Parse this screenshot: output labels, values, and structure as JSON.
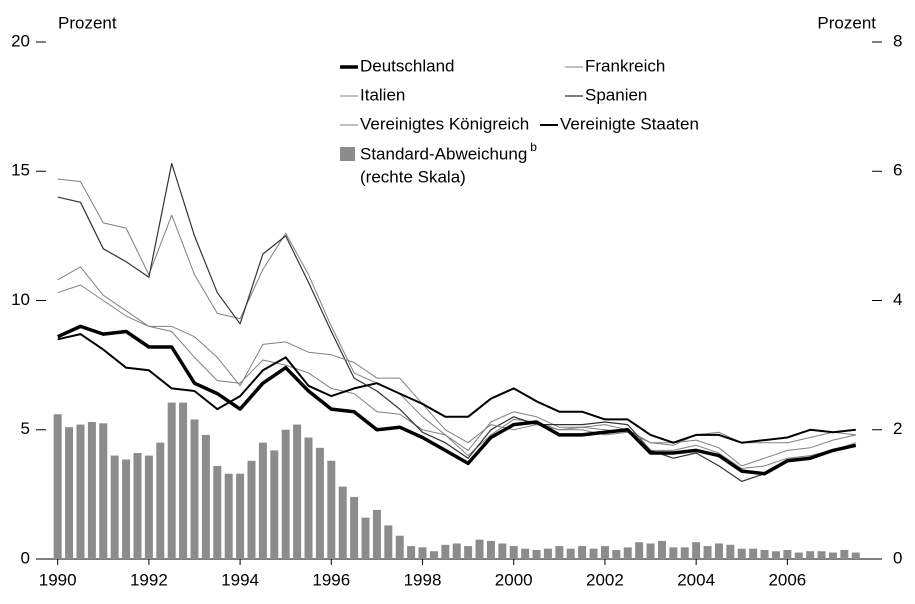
{
  "chart_data": {
    "type": "line_bar",
    "y_label": "Prozent",
    "y2_label": "Prozent",
    "xlim": [
      1989.7,
      2007.9
    ],
    "xticks": [
      1990,
      1992,
      1994,
      1996,
      1998,
      2000,
      2002,
      2004,
      2006
    ],
    "ylim": [
      0,
      20
    ],
    "yticks": [
      0,
      5,
      10,
      15,
      20
    ],
    "y2lim": [
      0,
      8
    ],
    "y2ticks": [
      0,
      2,
      4,
      6,
      8
    ],
    "x": [
      1990,
      1990.5,
      1991,
      1991.5,
      1992,
      1992.5,
      1993,
      1993.5,
      1994,
      1994.5,
      1995,
      1995.5,
      1996,
      1996.5,
      1997,
      1997.5,
      1998,
      1998.5,
      1999,
      1999.5,
      2000,
      2000.5,
      2001,
      2001.5,
      2002,
      2002.5,
      2003,
      2003.5,
      2004,
      2004.5,
      2005,
      2005.5,
      2006,
      2006.5,
      2007,
      2007.5
    ],
    "series": [
      {
        "name": "Deutschland",
        "color": "#000000",
        "linewidth": 3.5,
        "values": [
          8.6,
          9.0,
          8.7,
          8.8,
          8.2,
          8.2,
          6.8,
          6.4,
          5.8,
          6.8,
          7.4,
          6.5,
          5.8,
          5.7,
          5.0,
          5.1,
          4.7,
          4.2,
          3.7,
          4.7,
          5.2,
          5.3,
          4.8,
          4.8,
          4.9,
          5.0,
          4.1,
          4.1,
          4.2,
          4.0,
          3.4,
          3.3,
          3.8,
          3.9,
          4.2,
          4.4
        ]
      },
      {
        "name": "Frankreich",
        "color": "#808080",
        "linewidth": 1,
        "values": [
          10.3,
          10.6,
          10.0,
          9.4,
          9.0,
          8.8,
          7.8,
          6.9,
          6.8,
          7.7,
          7.5,
          7.2,
          6.6,
          6.4,
          5.7,
          5.6,
          5.0,
          4.8,
          4.0,
          4.8,
          5.4,
          5.3,
          5.0,
          5.1,
          5.0,
          4.9,
          4.2,
          4.2,
          4.4,
          4.1,
          3.5,
          3.6,
          3.9,
          4.0,
          4.2,
          4.5
        ]
      },
      {
        "name": "Italien",
        "color": "#808080",
        "linewidth": 1,
        "values": [
          14.7,
          14.6,
          13.0,
          12.8,
          11.0,
          13.3,
          11.0,
          9.5,
          9.3,
          11.2,
          12.6,
          11.0,
          9.0,
          7.2,
          6.8,
          6.4,
          5.5,
          4.8,
          4.2,
          5.3,
          5.7,
          5.5,
          5.1,
          5.1,
          5.2,
          5.0,
          4.5,
          4.5,
          4.6,
          4.3,
          3.6,
          3.9,
          4.2,
          4.3,
          4.6,
          4.8
        ]
      },
      {
        "name": "Spanien",
        "color": "#333333",
        "linewidth": 1.2,
        "values": [
          14.0,
          13.8,
          12.0,
          11.5,
          10.9,
          15.3,
          12.5,
          10.3,
          9.1,
          11.8,
          12.5,
          10.7,
          8.8,
          7.0,
          6.5,
          5.8,
          4.9,
          4.5,
          3.9,
          5.0,
          5.5,
          5.2,
          5.2,
          5.2,
          5.3,
          5.2,
          4.2,
          3.9,
          4.1,
          3.6,
          3.0,
          3.3,
          3.8,
          3.9,
          4.2,
          4.4
        ]
      },
      {
        "name": "Vereinigtes Königreich",
        "color": "#808080",
        "linewidth": 1,
        "values": [
          10.8,
          11.3,
          10.2,
          9.6,
          9.0,
          9.0,
          8.6,
          7.8,
          6.7,
          8.3,
          8.4,
          8.0,
          7.9,
          7.6,
          7.0,
          7.0,
          6.0,
          5.0,
          4.5,
          5.2,
          5.0,
          5.2,
          5.0,
          5.0,
          4.8,
          4.9,
          4.5,
          4.4,
          4.8,
          4.9,
          4.5,
          4.5,
          4.5,
          4.7,
          4.9,
          4.8
        ]
      },
      {
        "name": "Vereinigte Staaten",
        "color": "#000000",
        "linewidth": 2,
        "values": [
          8.5,
          8.7,
          8.1,
          7.4,
          7.3,
          6.6,
          6.5,
          5.8,
          6.3,
          7.3,
          7.8,
          6.7,
          6.3,
          6.6,
          6.8,
          6.4,
          6.0,
          5.5,
          5.5,
          6.2,
          6.6,
          6.1,
          5.7,
          5.7,
          5.4,
          5.4,
          4.8,
          4.5,
          4.8,
          4.8,
          4.5,
          4.6,
          4.7,
          5.0,
          4.9,
          5.0
        ]
      }
    ],
    "bars": {
      "name": "Standard-Abweichung",
      "footnote_mark": "b",
      "note": "(rechte Skala)",
      "color": "#8c8c8c",
      "axis": "y2",
      "x": [
        1990,
        1990.25,
        1990.5,
        1990.75,
        1991,
        1991.25,
        1991.5,
        1991.75,
        1992,
        1992.25,
        1992.5,
        1992.75,
        1993,
        1993.25,
        1993.5,
        1993.75,
        1994,
        1994.25,
        1994.5,
        1994.75,
        1995,
        1995.25,
        1995.5,
        1995.75,
        1996,
        1996.25,
        1996.5,
        1996.75,
        1997,
        1997.25,
        1997.5,
        1997.75,
        1998,
        1998.25,
        1998.5,
        1998.75,
        1999,
        1999.25,
        1999.5,
        1999.75,
        2000,
        2000.25,
        2000.5,
        2000.75,
        2001,
        2001.25,
        2001.5,
        2001.75,
        2002,
        2002.25,
        2002.5,
        2002.75,
        2003,
        2003.25,
        2003.5,
        2003.75,
        2004,
        2004.25,
        2004.5,
        2004.75,
        2005,
        2005.25,
        2005.5,
        2005.75,
        2006,
        2006.25,
        2006.5,
        2006.75,
        2007,
        2007.25,
        2007.5
      ],
      "values": [
        2.24,
        2.04,
        2.08,
        2.12,
        2.1,
        1.6,
        1.54,
        1.64,
        1.6,
        1.8,
        2.42,
        2.42,
        2.16,
        1.92,
        1.44,
        1.32,
        1.32,
        1.52,
        1.8,
        1.68,
        2.0,
        2.08,
        1.88,
        1.72,
        1.52,
        1.12,
        0.96,
        0.64,
        0.76,
        0.52,
        0.36,
        0.2,
        0.18,
        0.12,
        0.22,
        0.24,
        0.2,
        0.3,
        0.28,
        0.24,
        0.2,
        0.16,
        0.14,
        0.16,
        0.2,
        0.16,
        0.2,
        0.16,
        0.2,
        0.14,
        0.18,
        0.26,
        0.24,
        0.28,
        0.18,
        0.18,
        0.26,
        0.2,
        0.24,
        0.22,
        0.16,
        0.16,
        0.14,
        0.12,
        0.14,
        0.1,
        0.12,
        0.12,
        0.1,
        0.14,
        0.1
      ]
    }
  }
}
